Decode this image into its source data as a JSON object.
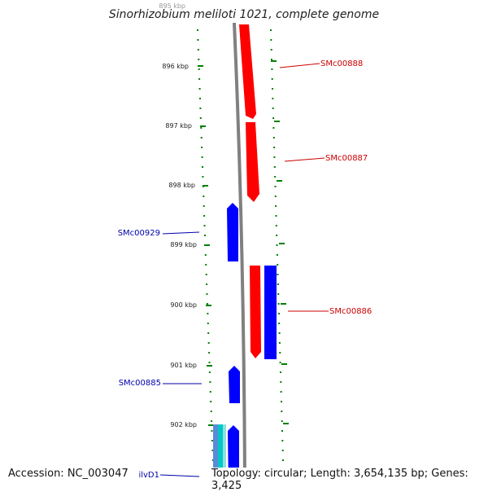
{
  "title": "Sinorhizobium meliloti 1021, complete genome",
  "footer": {
    "accession": "Accession: NC_003047",
    "summary": "Topology: circular; Length: 3,654,135 bp; Genes: 3,425"
  },
  "scale": {
    "top_label": "895 kbp",
    "ticks": [
      "896 kbp",
      "897 kbp",
      "898 kbp",
      "899 kbp",
      "900 kbp",
      "901 kbp",
      "902 kbp"
    ]
  },
  "colors": {
    "forward": "#ff0000",
    "reverse": "#0000ff",
    "reverse_label": "#0000aa",
    "forward_label": "#cc0000",
    "rna": "#00c8c8",
    "backbone": "#808080",
    "tick": "#008000"
  },
  "genes": [
    {
      "label": "SMc00888",
      "strand": "forward"
    },
    {
      "label": "SMc00887",
      "strand": "forward"
    },
    {
      "label": "SMc00929",
      "strand": "reverse"
    },
    {
      "label": "SMc00886",
      "strand": "forward"
    },
    {
      "label": "SMc00885",
      "strand": "reverse"
    },
    {
      "label": "ilvD1",
      "strand": "reverse"
    }
  ]
}
